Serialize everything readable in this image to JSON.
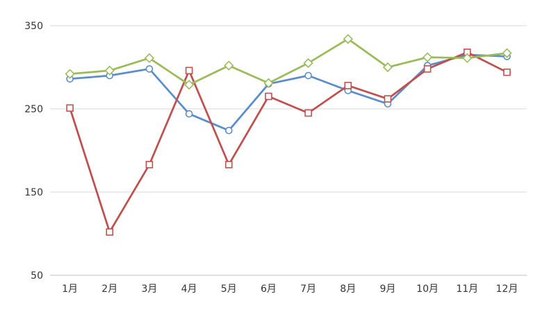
{
  "chart_data": {
    "type": "line",
    "categories": [
      "1月",
      "2月",
      "3月",
      "4月",
      "5月",
      "6月",
      "7月",
      "8月",
      "9月",
      "10月",
      "11月",
      "12月"
    ],
    "y_ticks": [
      50,
      150,
      250,
      350
    ],
    "ylim": [
      50,
      350
    ],
    "grid": true,
    "series": [
      {
        "color": "#5b8ec9",
        "marker": "circle",
        "values": [
          286,
          290,
          298,
          244,
          224,
          280,
          290,
          272,
          256,
          302,
          315,
          313
        ]
      },
      {
        "color": "#c0504d",
        "marker": "square",
        "values": [
          251,
          102,
          183,
          296,
          183,
          265,
          245,
          278,
          262,
          298,
          318,
          294
        ]
      },
      {
        "color": "#9bbb59",
        "marker": "diamond",
        "values": [
          292,
          296,
          311,
          279,
          302,
          281,
          305,
          334,
          300,
          312,
          311,
          317
        ]
      }
    ]
  }
}
